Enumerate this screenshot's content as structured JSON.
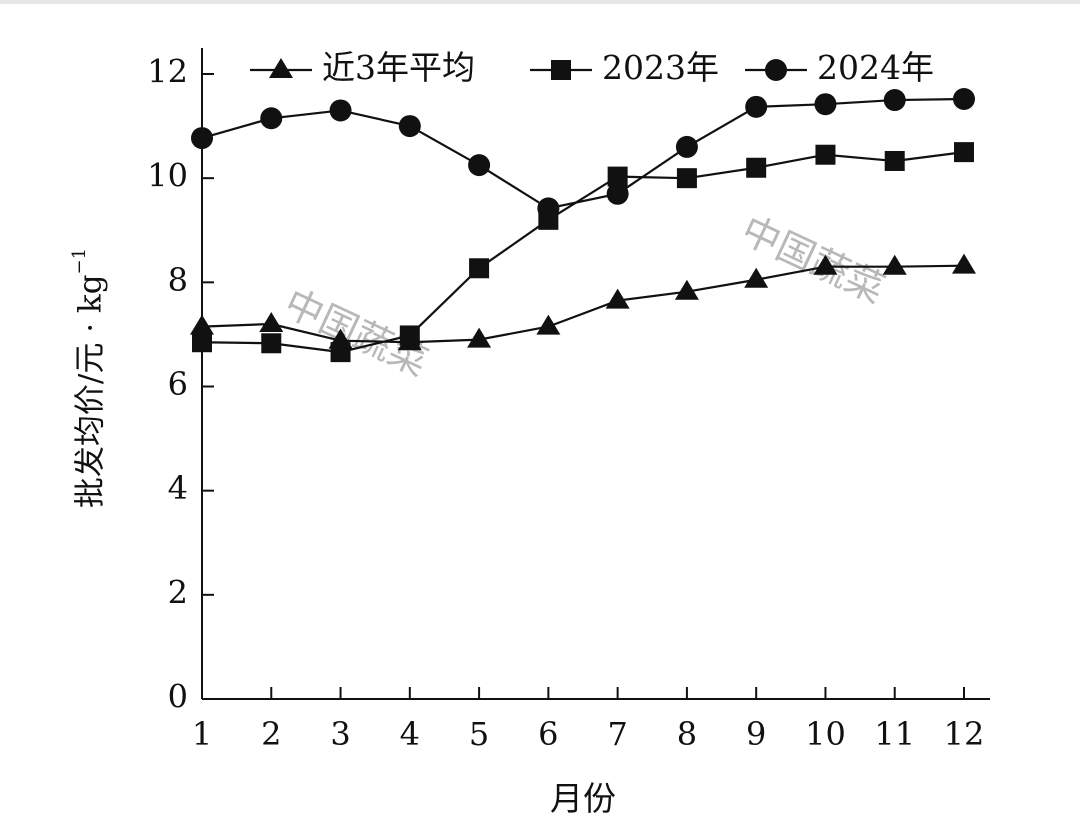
{
  "chart_data": {
    "type": "line",
    "x": [
      1,
      2,
      3,
      4,
      5,
      6,
      7,
      8,
      9,
      10,
      11,
      12
    ],
    "xlabel": "月份",
    "ylabel": "批发均价/元 · kg",
    "ylabel_sup": "−1",
    "ylim": [
      0,
      12
    ],
    "yticks": [
      0,
      2,
      4,
      6,
      8,
      10,
      12
    ],
    "grid": false,
    "legend_position": "top",
    "series": [
      {
        "name": "近3年平均",
        "marker": "triangle",
        "values": [
          7.15,
          7.2,
          6.88,
          6.85,
          6.9,
          7.15,
          7.65,
          7.82,
          8.05,
          8.3,
          8.3,
          8.32
        ]
      },
      {
        "name": "2023年",
        "marker": "square",
        "values": [
          6.85,
          6.83,
          6.66,
          6.98,
          8.27,
          9.2,
          10.03,
          10.0,
          10.2,
          10.45,
          10.33,
          10.5
        ]
      },
      {
        "name": "2024年",
        "marker": "circle",
        "values": [
          10.77,
          11.15,
          11.3,
          11.0,
          10.25,
          9.42,
          9.7,
          10.6,
          11.37,
          11.42,
          11.5,
          11.52
        ]
      }
    ],
    "watermark": "中国蔬菜"
  },
  "colors": {
    "ink": "#111111",
    "watermark": "#b8b8b8",
    "top_rule": "#e6e6e6"
  }
}
